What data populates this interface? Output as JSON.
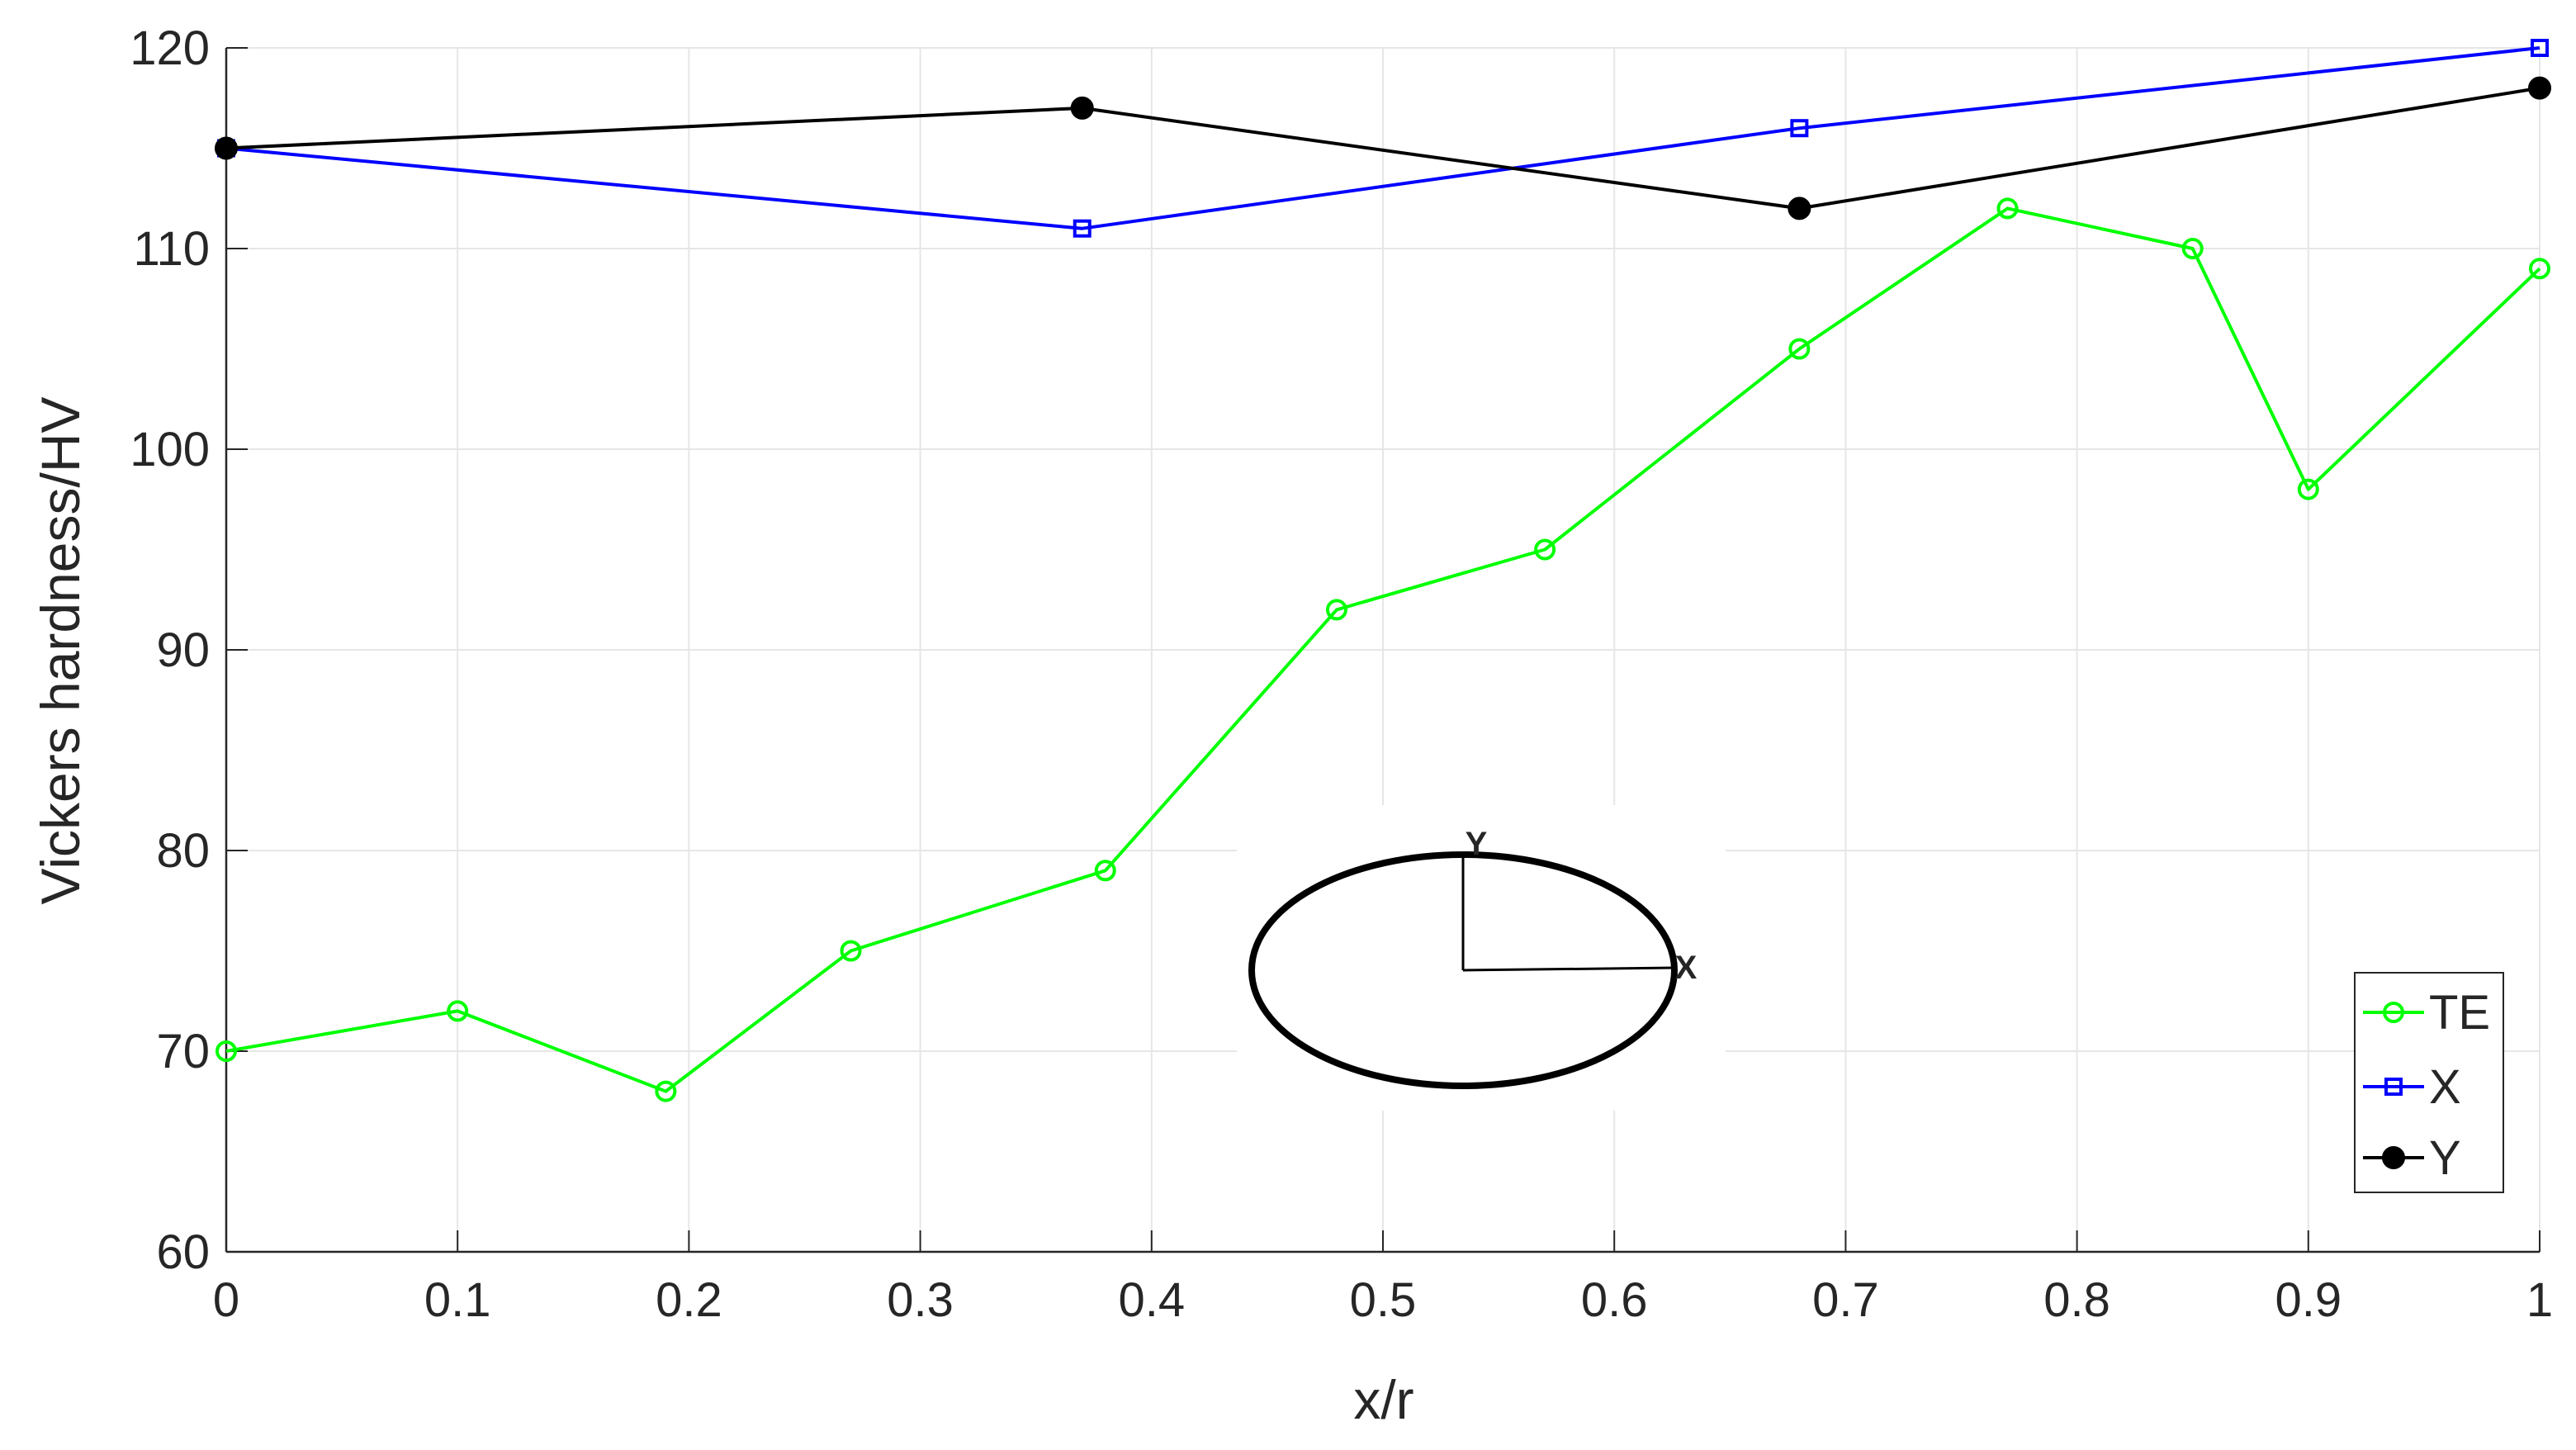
{
  "chart_data": {
    "type": "line",
    "xlabel": "x/r",
    "ylabel": "Vickers hardness/HV",
    "xlim": [
      0,
      1
    ],
    "ylim": [
      60,
      120
    ],
    "xticks": [
      "0",
      "0.1",
      "0.2",
      "0.3",
      "0.4",
      "0.5",
      "0.6",
      "0.7",
      "0.8",
      "0.9",
      "1"
    ],
    "yticks": [
      "60",
      "70",
      "80",
      "90",
      "100",
      "110",
      "120"
    ],
    "grid": true,
    "legend_position": "bottom-right",
    "series": [
      {
        "name": "TE",
        "color": "#00ff00",
        "marker": "open-circle",
        "x": [
          0,
          0.1,
          0.19,
          0.27,
          0.38,
          0.48,
          0.57,
          0.68,
          0.77,
          0.85,
          0.9,
          1
        ],
        "y": [
          70,
          72,
          68,
          75,
          79,
          92,
          95,
          105,
          112,
          110,
          98,
          109
        ]
      },
      {
        "name": "X",
        "color": "#0000ff",
        "marker": "open-square",
        "x": [
          0,
          0.37,
          0.68,
          1
        ],
        "y": [
          115,
          111,
          116,
          120
        ]
      },
      {
        "name": "Y",
        "color": "#000000",
        "marker": "filled-circle",
        "x": [
          0,
          0.37,
          0.68,
          1
        ],
        "y": [
          115,
          117,
          112,
          118
        ]
      }
    ],
    "inset": {
      "shape": "ellipse",
      "axis_labels": [
        "Y",
        "X"
      ]
    }
  }
}
